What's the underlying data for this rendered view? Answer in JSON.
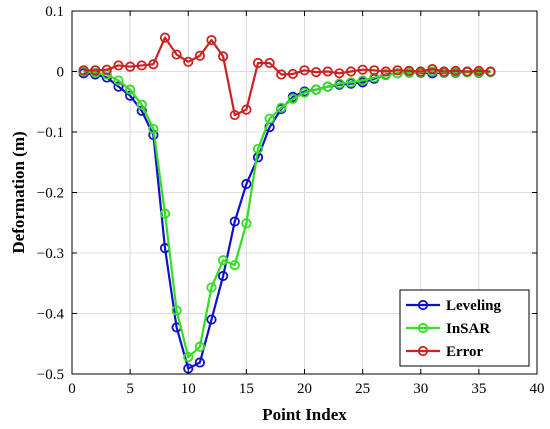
{
  "chart_data": {
    "type": "line",
    "xlabel": "Point Index",
    "ylabel": "Deformation (m)",
    "xlim": [
      0,
      40
    ],
    "ylim": [
      -0.5,
      0.1
    ],
    "xticks": [
      0,
      5,
      10,
      15,
      20,
      25,
      30,
      35,
      40
    ],
    "yticks": [
      0.1,
      0,
      -0.1,
      -0.2,
      -0.3,
      -0.4,
      -0.5
    ],
    "ytick_labels": [
      "0.1",
      "0",
      "−0.1",
      "−0.2",
      "−0.3",
      "−0.4",
      "−0.5"
    ],
    "grid": true,
    "legend_position": "bottom-right",
    "x": [
      1,
      2,
      3,
      4,
      5,
      6,
      7,
      8,
      9,
      10,
      11,
      12,
      13,
      14,
      15,
      16,
      17,
      18,
      19,
      20,
      21,
      22,
      23,
      24,
      25,
      26,
      27,
      28,
      29,
      30,
      31,
      32,
      33,
      34,
      35,
      36
    ],
    "series": [
      {
        "name": "Leveling",
        "color": "#1010cc",
        "values": [
          -0.003,
          -0.005,
          -0.01,
          -0.025,
          -0.04,
          -0.065,
          -0.105,
          -0.292,
          -0.423,
          -0.491,
          -0.481,
          -0.41,
          -0.338,
          -0.248,
          -0.186,
          -0.142,
          -0.092,
          -0.062,
          -0.042,
          -0.033,
          -0.03,
          -0.025,
          -0.022,
          -0.02,
          -0.018,
          -0.012,
          -0.005,
          -0.003,
          -0.002,
          -0.002,
          -0.003,
          -0.002,
          -0.002,
          -0.001,
          -0.002,
          -0.001
        ]
      },
      {
        "name": "InSAR",
        "color": "#33dd22",
        "values": [
          0.0,
          -0.002,
          -0.005,
          -0.015,
          -0.03,
          -0.055,
          -0.095,
          -0.235,
          -0.395,
          -0.472,
          -0.455,
          -0.357,
          -0.312,
          -0.32,
          -0.251,
          -0.128,
          -0.078,
          -0.06,
          -0.045,
          -0.035,
          -0.03,
          -0.025,
          -0.02,
          -0.018,
          -0.015,
          -0.01,
          -0.006,
          -0.003,
          -0.002,
          -0.001,
          0.0,
          -0.001,
          -0.001,
          -0.001,
          -0.001,
          -0.001
        ]
      },
      {
        "name": "Error",
        "color": "#cc2222",
        "values": [
          0.002,
          0.002,
          0.003,
          0.01,
          0.008,
          0.01,
          0.012,
          0.056,
          0.028,
          0.016,
          0.026,
          0.052,
          0.025,
          -0.072,
          -0.063,
          0.014,
          0.014,
          -0.005,
          -0.004,
          0.002,
          -0.001,
          0.0,
          -0.003,
          0.0,
          0.003,
          0.002,
          0.0,
          0.002,
          0.001,
          0.0,
          0.004,
          0.0,
          0.001,
          0.0,
          0.001,
          0.0
        ]
      }
    ]
  }
}
